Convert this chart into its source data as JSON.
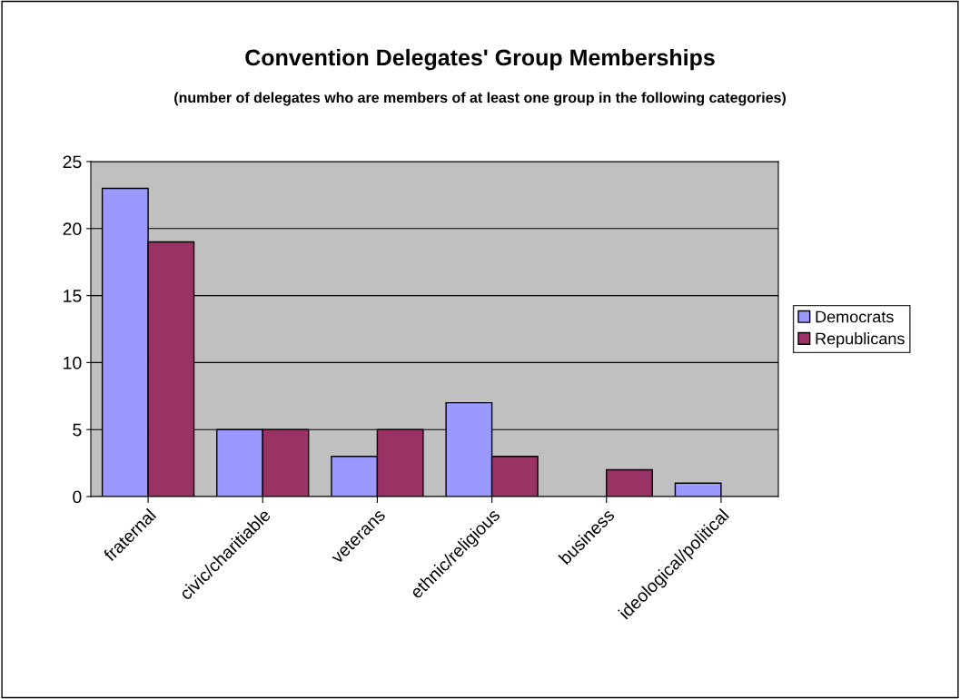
{
  "chart_data": {
    "type": "bar",
    "title": "Convention Delegates' Group Memberships",
    "subtitle": "(number of delegates who are members of at least one group in the following categories)",
    "categories": [
      "fraternal",
      "civic/charitiable",
      "veterans",
      "ethnic/religious",
      "business",
      "ideological/political"
    ],
    "series": [
      {
        "name": "Democrats",
        "color": "#9999ff",
        "values": [
          23,
          5,
          3,
          7,
          0,
          1
        ]
      },
      {
        "name": "Republicans",
        "color": "#993366",
        "values": [
          19,
          5,
          5,
          3,
          2,
          0
        ]
      }
    ],
    "ylim": [
      0,
      25
    ],
    "yticks": [
      0,
      5,
      10,
      15,
      20,
      25
    ],
    "grid": "y",
    "legend": "right"
  }
}
